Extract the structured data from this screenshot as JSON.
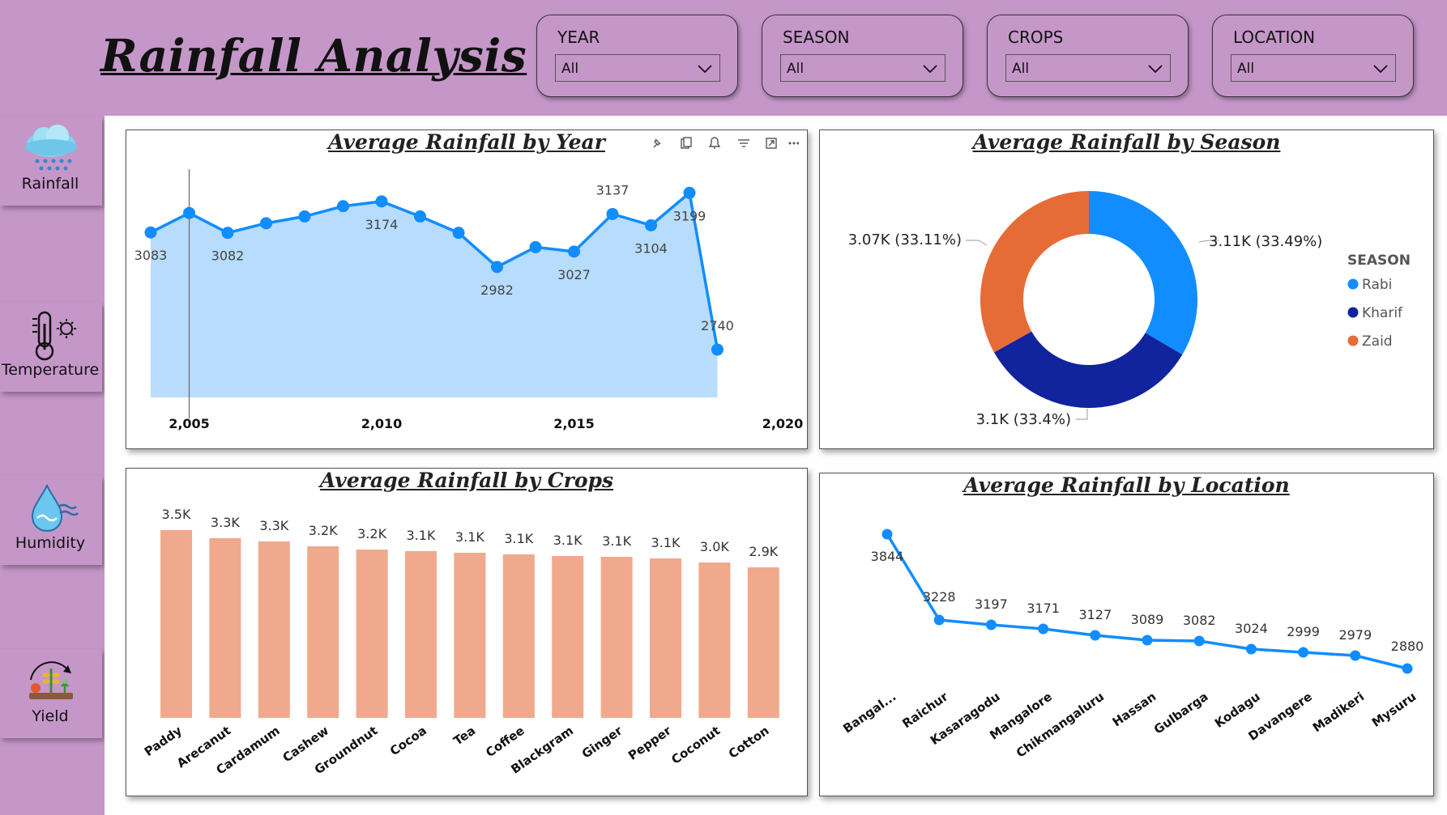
{
  "header": {
    "title": "Rainfall Analysis"
  },
  "slicers": [
    {
      "label": "YEAR",
      "value": "All"
    },
    {
      "label": "SEASON",
      "value": "All"
    },
    {
      "label": "CROPS",
      "value": "All"
    },
    {
      "label": "LOCATION",
      "value": "All"
    }
  ],
  "nav": [
    {
      "label": "Rainfall",
      "icon": "rain-cloud-icon"
    },
    {
      "label": "Temperature",
      "icon": "thermometer-sun-icon"
    },
    {
      "label": "Humidity",
      "icon": "water-drop-icon"
    },
    {
      "label": "Yield",
      "icon": "plant-yield-icon"
    }
  ],
  "colors": {
    "background": "#c597c9",
    "line": "#118dff",
    "area": "#b8dcfd",
    "bar": "#f0a98c",
    "rabi": "#118dff",
    "kharif": "#12239e",
    "zaid": "#e66c37"
  },
  "chart_data": [
    {
      "id": "year",
      "type": "area",
      "title": "Average Rainfall by Year",
      "x": [
        2004,
        2005,
        2006,
        2007,
        2008,
        2009,
        2010,
        2011,
        2012,
        2013,
        2014,
        2015,
        2016,
        2017,
        2018,
        2019
      ],
      "values": [
        3083,
        3140,
        3082,
        3110,
        3130,
        3160,
        3174,
        3130,
        3082,
        2982,
        3040,
        3027,
        3137,
        3104,
        3199,
        2740
      ],
      "data_labels": [
        {
          "x": 2004,
          "text": "3083"
        },
        {
          "x": 2006,
          "text": "3082"
        },
        {
          "x": 2010,
          "text": "3174"
        },
        {
          "x": 2013,
          "text": "2982"
        },
        {
          "x": 2015,
          "text": "3027"
        },
        {
          "x": 2016,
          "text": "3137"
        },
        {
          "x": 2017,
          "text": "3104"
        },
        {
          "x": 2018,
          "text": "3199"
        },
        {
          "x": 2019,
          "text": "2740"
        }
      ],
      "x_ticks": [
        "2,005",
        "2,010",
        "2,015",
        "2,020"
      ],
      "x_tick_values": [
        2005,
        2010,
        2015,
        2020
      ],
      "hover_year": 2005,
      "ylim": [
        2600,
        3240
      ]
    },
    {
      "id": "season",
      "type": "pie",
      "title": "Average Rainfall by Season",
      "legend_title": "SEASON",
      "slices": [
        {
          "name": "Rabi",
          "value": 3.11,
          "percent": 33.49,
          "label": "3.11K (33.49%)"
        },
        {
          "name": "Kharif",
          "value": 3.1,
          "percent": 33.4,
          "label": "3.1K (33.4%)"
        },
        {
          "name": "Zaid",
          "value": 3.07,
          "percent": 33.11,
          "label": "3.07K (33.11%)"
        }
      ]
    },
    {
      "id": "crops",
      "type": "bar",
      "title": "Average Rainfall by Crops",
      "categories": [
        "Paddy",
        "Arecanut",
        "Cardamum",
        "Cashew",
        "Groundnut",
        "Cocoa",
        "Tea",
        "Coffee",
        "Blackgram",
        "Ginger",
        "Pepper",
        "Coconut",
        "Cotton"
      ],
      "values": [
        3500,
        3300,
        3300,
        3200,
        3200,
        3100,
        3100,
        3100,
        3100,
        3100,
        3100,
        3000,
        2900
      ],
      "labels": [
        "3.5K",
        "3.3K",
        "3.3K",
        "3.2K",
        "3.2K",
        "3.1K",
        "3.1K",
        "3.1K",
        "3.1K",
        "3.1K",
        "3.1K",
        "3.0K",
        "2.9K"
      ],
      "ylim": [
        0,
        3600
      ]
    },
    {
      "id": "location",
      "type": "line",
      "title": "Average Rainfall by Location",
      "categories": [
        "Bangal...",
        "Raichur",
        "Kasaragodu",
        "Mangalore",
        "Chikmangaluru",
        "Hassan",
        "Gulbarga",
        "Kodagu",
        "Davangere",
        "Madikeri",
        "Mysuru"
      ],
      "values": [
        3844,
        3228,
        3197,
        3171,
        3127,
        3089,
        3082,
        3024,
        2999,
        2979,
        2880
      ],
      "ylim": [
        2500,
        3950
      ]
    }
  ]
}
